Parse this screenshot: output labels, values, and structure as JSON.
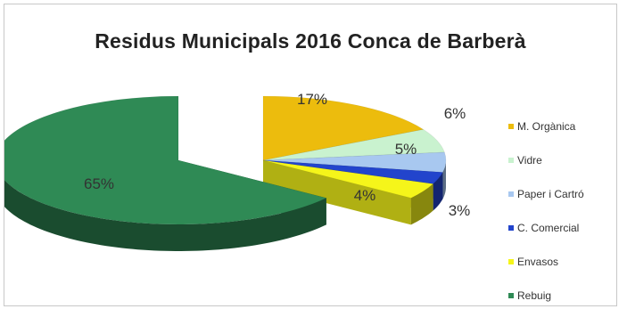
{
  "chart_data": {
    "type": "pie",
    "title": "Residus Municipals 2016 Conca de Barberà",
    "categories": [
      "M. Orgànica",
      "Vidre",
      "Paper i Cartró",
      "C. Comercial",
      "Envasos",
      "Rebuig"
    ],
    "values": [
      17,
      6,
      5,
      3,
      4,
      65
    ],
    "labels": [
      "17%",
      "6%",
      "5%",
      "3%",
      "4%",
      "65%"
    ],
    "colors": [
      "#ecbc0d",
      "#c9f2cf",
      "#a8c8f0",
      "#2244cc",
      "#f5f51a",
      "#2f8a55"
    ],
    "exploded": true,
    "three_d": true,
    "legend_position": "right"
  }
}
